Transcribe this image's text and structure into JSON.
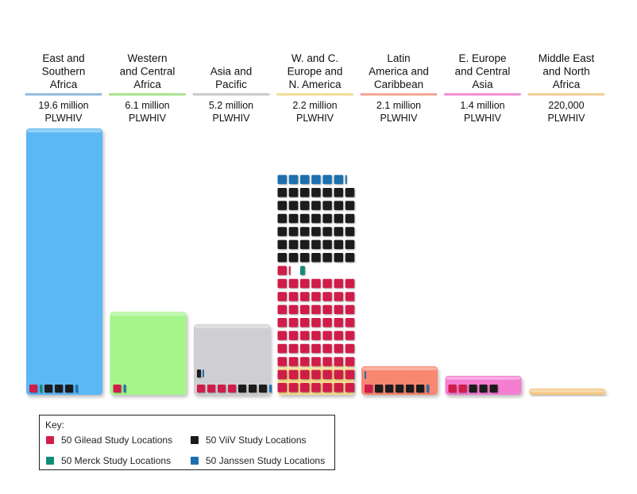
{
  "chart_data": {
    "type": "bar",
    "categories": [
      {
        "lines": [
          "East and",
          "Southern",
          "Africa"
        ],
        "value_label": [
          "19.6 million",
          "PLWHIV"
        ],
        "plwhiv_millions": 19.6,
        "color": "#5bb8f5",
        "underline": "#8fb8d8",
        "locations": {
          "gilead": 1,
          "merck": 1,
          "viiv": 3,
          "janssen": 1
        }
      },
      {
        "lines": [
          "Western",
          "and Central",
          "Africa"
        ],
        "value_label": [
          "6.1 million",
          "PLWHIV"
        ],
        "plwhiv_millions": 6.1,
        "color": "#a6f58a",
        "underline": "#a6e08a",
        "locations": {
          "gilead": 1,
          "merck": 0,
          "viiv": 0,
          "janssen": 1
        }
      },
      {
        "lines": [
          "Asia and",
          "Pacific"
        ],
        "value_label": [
          "5.2 million",
          "PLWHIV"
        ],
        "plwhiv_millions": 5.2,
        "color": "#cfcfd3",
        "underline": "#c8c8c8",
        "locations": {
          "gilead": 4,
          "merck": 0,
          "viiv": 3,
          "janssen": 1
        }
      },
      {
        "lines": [
          "W. and C.",
          "Europe and",
          "N. America"
        ],
        "value_label": [
          "2.2 million",
          "PLWHIV"
        ],
        "plwhiv_millions": 2.2,
        "color": "#f6d98c",
        "underline": "#f0dc90",
        "locations": {
          "gilead": 62,
          "merck": 1,
          "viiv": 42,
          "janssen": 7
        }
      },
      {
        "lines": [
          "Latin",
          "America and",
          "Caribbean"
        ],
        "value_label": [
          "2.1 million",
          "PLWHIV"
        ],
        "plwhiv_millions": 2.1,
        "color": "#f88870",
        "underline": "#f4a090",
        "locations": {
          "gilead": 1,
          "merck": 0,
          "viiv": 5,
          "janssen": 1
        }
      },
      {
        "lines": [
          "E. Europe",
          "and Central",
          "Asia"
        ],
        "value_label": [
          "1.4 million",
          "PLWHIV"
        ],
        "plwhiv_millions": 1.4,
        "color": "#f47ed2",
        "underline": "#f08ad0",
        "locations": {
          "gilead": 2,
          "merck": 0,
          "viiv": 3,
          "janssen": 0
        }
      },
      {
        "lines": [
          "Middle East",
          "and North",
          "Africa"
        ],
        "value_label": [
          "220,000",
          "PLWHIV"
        ],
        "plwhiv_millions": 0.22,
        "color": "#f3c57f",
        "underline": "#f0cc90",
        "locations": {
          "gilead": 0,
          "merck": 0,
          "viiv": 0,
          "janssen": 0
        }
      }
    ],
    "unit": "PLWHIV",
    "grid": false,
    "legend_position": "bottom-left"
  },
  "key": {
    "title": "Key:",
    "items": [
      {
        "id": "gilead",
        "label": "50 Gilead Study Locations",
        "color": "#d01f48"
      },
      {
        "id": "viiv",
        "label": "50 ViiV Study Locations",
        "color": "#1a1a1a"
      },
      {
        "id": "merck",
        "label": "50 Merck Study Locations",
        "color": "#128a78"
      },
      {
        "id": "janssen",
        "label": "50 Janssen Study Locations",
        "color": "#1f6fb0"
      }
    ]
  }
}
